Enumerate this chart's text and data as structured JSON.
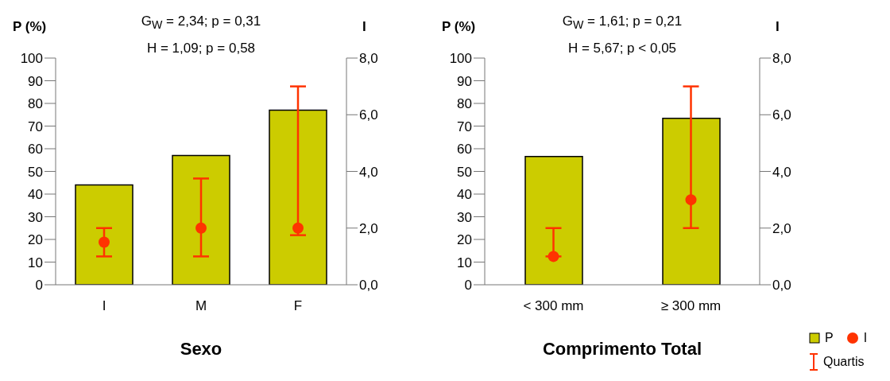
{
  "chart_data": [
    {
      "type": "bar",
      "title": "G$_{W}$ = 2,34; p = 0,31",
      "subtitle": "H = 1,09; p = 0,58",
      "xlabel": "Sexo",
      "ylabel": "P (%)",
      "y2label": "I",
      "categories": [
        "I",
        "M",
        "F"
      ],
      "series": [
        {
          "color": "#cccc00",
          "values": [
            44,
            57,
            77
          ]
        },
        {
          "type": "scatter",
          "axis": "y2",
          "color": "#ff3300",
          "values": [
            1.5,
            2.0,
            2.0
          ],
          "errors": [
            [
              1.0,
              2.0
            ],
            [
              1.0,
              3.75
            ],
            [
              1.75,
              7.0
            ]
          ]
        }
      ],
      "ylim": [
        0,
        100
      ],
      "yticks": [
        0,
        10,
        20,
        30,
        40,
        50,
        60,
        70,
        80,
        90,
        100
      ],
      "y2lim": [
        0,
        8
      ],
      "y2ticks": [
        {
          "value": 0,
          "label": "0,0"
        },
        {
          "value": 2,
          "label": "2,0"
        },
        {
          "value": 4,
          "label": "4,0"
        },
        {
          "value": 6,
          "label": "6,0"
        },
        {
          "value": 8,
          "label": "8,0"
        }
      ],
      "grid": false,
      "legend": false,
      "marker": "circle"
    },
    {
      "type": "bar",
      "title": "G$_{W}$ = 1,61; p = 0,21",
      "subtitle": "H = 5,67; p < 0,05",
      "xlabel": "Comprimento Total",
      "ylabel": "P (%)",
      "y2label": "I",
      "categories": [
        "< 300 mm",
        "≥ 300 mm"
      ],
      "series": [
        {
          "name": "P",
          "color": "#cccc00",
          "values": [
            56.6,
            73.4
          ]
        },
        {
          "name": "I",
          "type": "scatter",
          "axis": "y2",
          "color": "#ff3300",
          "values": [
            1.0,
            3.0
          ],
          "errors": [
            [
              1.0,
              2.0
            ],
            [
              2.0,
              7.0
            ]
          ]
        }
      ],
      "ylim": [
        0,
        100
      ],
      "yticks": [
        0,
        10,
        20,
        30,
        40,
        50,
        60,
        70,
        80,
        90,
        100
      ],
      "y2lim": [
        0,
        8
      ],
      "y2ticks": [
        {
          "value": 0,
          "label": "0,0"
        },
        {
          "value": 2,
          "label": "2,0"
        },
        {
          "value": 4,
          "label": "4,0"
        },
        {
          "value": 6,
          "label": "6,0"
        },
        {
          "value": 8,
          "label": "8,0"
        }
      ],
      "grid": false,
      "legend": "right",
      "marker": "circle",
      "annotations": [
        "Quartis"
      ]
    }
  ]
}
